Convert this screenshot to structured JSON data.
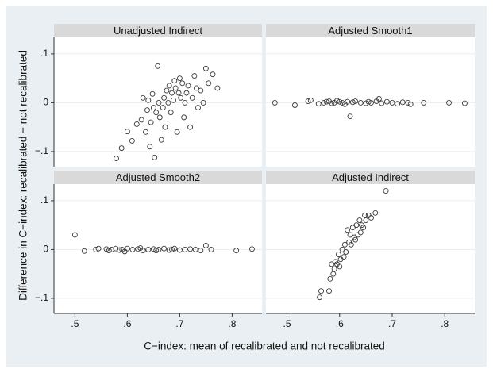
{
  "chart_data": {
    "type": "scatter",
    "y_label": "Difference in C−index: recalibrated − not recalibrated",
    "x_label": "C−index: mean of recalibrated and not recalibrated",
    "xlim": [
      0.46,
      0.857
    ],
    "ylim": [
      -0.131,
      0.134
    ],
    "xticks": [
      {
        "value": 0.5,
        "label": ".5"
      },
      {
        "value": 0.6,
        "label": ".6"
      },
      {
        "value": 0.7,
        "label": ".7"
      },
      {
        "value": 0.8,
        "label": ".8"
      }
    ],
    "yticks": [
      {
        "value": -0.1,
        "label": "−.1"
      },
      0,
      {
        "value": 0.1,
        "label": ".1"
      }
    ],
    "grid": true,
    "color": "#3a3a3a",
    "panels": [
      {
        "title": "Unadjusted Indirect",
        "x": [
          0.579,
          0.589,
          0.6,
          0.609,
          0.618,
          0.627,
          0.63,
          0.635,
          0.638,
          0.64,
          0.643,
          0.645,
          0.648,
          0.65,
          0.652,
          0.655,
          0.658,
          0.66,
          0.662,
          0.665,
          0.668,
          0.67,
          0.672,
          0.675,
          0.678,
          0.68,
          0.683,
          0.685,
          0.688,
          0.69,
          0.692,
          0.695,
          0.698,
          0.7,
          0.702,
          0.705,
          0.708,
          0.71,
          0.713,
          0.716,
          0.72,
          0.724,
          0.728,
          0.732,
          0.735,
          0.74,
          0.745,
          0.75,
          0.755,
          0.763,
          0.772
        ],
        "y": [
          -0.114,
          -0.093,
          -0.059,
          -0.078,
          -0.044,
          -0.035,
          0.01,
          -0.06,
          -0.015,
          0.005,
          -0.09,
          -0.04,
          0.018,
          -0.01,
          -0.112,
          -0.02,
          0.075,
          0.0,
          -0.03,
          -0.076,
          -0.01,
          0.01,
          -0.05,
          0.025,
          0.0,
          0.035,
          -0.02,
          0.02,
          0.005,
          0.045,
          0.03,
          -0.06,
          0.02,
          0.05,
          0.01,
          0.04,
          -0.03,
          0.0,
          0.02,
          0.035,
          -0.05,
          0.01,
          0.055,
          0.03,
          -0.01,
          0.025,
          0.0,
          0.07,
          0.04,
          0.058,
          0.03
        ]
      },
      {
        "title": "Adjusted Smooth1",
        "x": [
          0.477,
          0.515,
          0.54,
          0.545,
          0.56,
          0.57,
          0.575,
          0.58,
          0.585,
          0.59,
          0.595,
          0.6,
          0.605,
          0.61,
          0.615,
          0.62,
          0.625,
          0.63,
          0.64,
          0.65,
          0.655,
          0.66,
          0.67,
          0.675,
          0.68,
          0.69,
          0.7,
          0.71,
          0.72,
          0.73,
          0.735,
          0.76,
          0.808,
          0.838
        ],
        "y": [
          0.0,
          -0.005,
          0.003,
          0.005,
          -0.002,
          0.0,
          0.002,
          0.003,
          -0.001,
          0.0,
          0.004,
          0.002,
          0.0,
          -0.003,
          0.002,
          -0.028,
          0.001,
          0.003,
          0.0,
          -0.001,
          0.002,
          0.0,
          0.003,
          0.008,
          -0.001,
          0.002,
          0.0,
          -0.002,
          0.001,
          0.0,
          -0.003,
          0.0,
          0.0,
          -0.001
        ]
      },
      {
        "title": "Adjusted Smooth2",
        "x": [
          0.5,
          0.518,
          0.54,
          0.545,
          0.56,
          0.565,
          0.57,
          0.578,
          0.585,
          0.59,
          0.595,
          0.6,
          0.61,
          0.62,
          0.625,
          0.63,
          0.64,
          0.65,
          0.655,
          0.66,
          0.67,
          0.68,
          0.685,
          0.69,
          0.7,
          0.71,
          0.72,
          0.73,
          0.74,
          0.75,
          0.76,
          0.808,
          0.838
        ],
        "y": [
          0.03,
          -0.003,
          0.0,
          0.002,
          0.001,
          -0.002,
          0.0,
          0.002,
          -0.001,
          0.0,
          -0.004,
          0.002,
          0.0,
          0.001,
          0.003,
          -0.002,
          0.0,
          0.001,
          -0.002,
          0.0,
          0.002,
          -0.001,
          0.0,
          0.002,
          -0.001,
          0.0,
          0.001,
          0.0,
          -0.002,
          0.008,
          0.0,
          -0.002,
          0.001
        ]
      },
      {
        "title": "Adjusted Indirect",
        "x": [
          0.562,
          0.565,
          0.58,
          0.582,
          0.585,
          0.588,
          0.59,
          0.592,
          0.595,
          0.598,
          0.6,
          0.602,
          0.605,
          0.608,
          0.61,
          0.612,
          0.615,
          0.618,
          0.62,
          0.622,
          0.625,
          0.628,
          0.63,
          0.632,
          0.635,
          0.638,
          0.64,
          0.642,
          0.645,
          0.648,
          0.65,
          0.655,
          0.66,
          0.668,
          0.688
        ],
        "y": [
          -0.098,
          -0.085,
          -0.085,
          -0.06,
          -0.03,
          -0.05,
          -0.04,
          -0.025,
          -0.03,
          -0.01,
          -0.035,
          -0.02,
          0.0,
          -0.015,
          0.01,
          -0.005,
          0.04,
          0.015,
          0.03,
          0.01,
          0.045,
          0.025,
          0.02,
          0.05,
          0.03,
          0.06,
          0.035,
          0.05,
          0.045,
          0.07,
          0.06,
          0.07,
          0.065,
          0.075,
          0.12
        ]
      }
    ]
  }
}
